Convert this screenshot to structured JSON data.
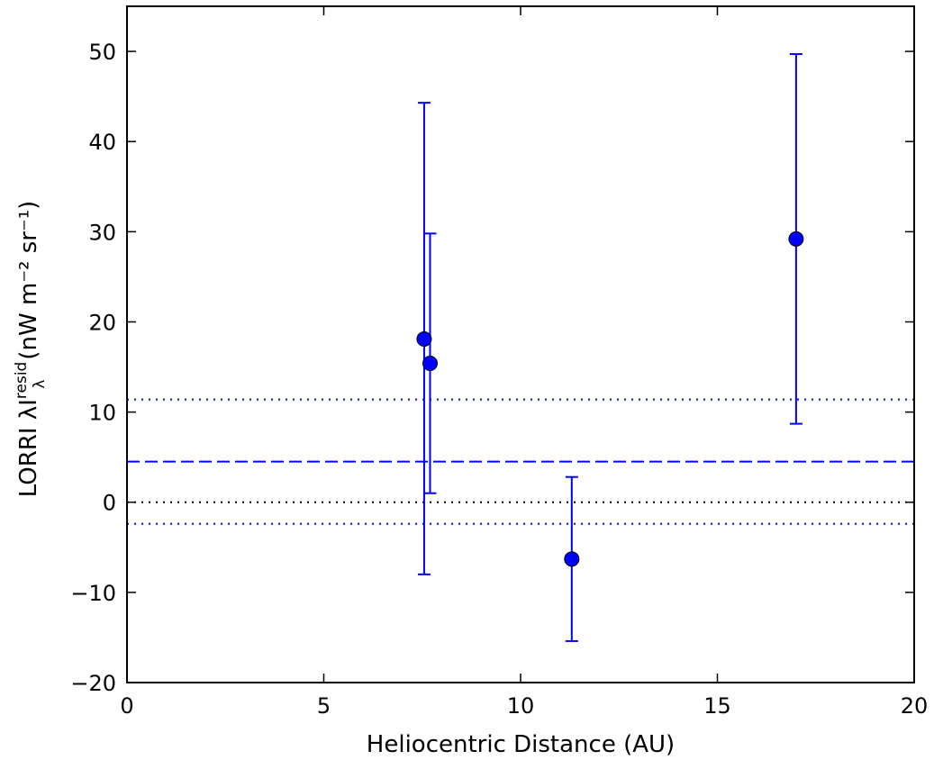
{
  "chart_data": {
    "type": "scatter",
    "xlabel": "Heliocentric Distance (AU)",
    "ylabel_prefix": "LORRI λI",
    "ylabel_sub": "λ",
    "ylabel_sup": "resid",
    "ylabel_units": "(nW m⁻² sr⁻¹)",
    "xlim": [
      0,
      20
    ],
    "ylim": [
      -20,
      55
    ],
    "x_ticks": [
      0,
      5,
      10,
      15,
      20
    ],
    "x_tick_labels": [
      "0",
      "5",
      "10",
      "15",
      "20"
    ],
    "y_ticks": [
      -20,
      -10,
      0,
      10,
      20,
      30,
      40,
      50
    ],
    "y_tick_labels": [
      "−20",
      "−10",
      "0",
      "10",
      "20",
      "30",
      "40",
      "50"
    ],
    "grid": false,
    "points": [
      {
        "x": 7.55,
        "y": 18.1,
        "y_low": -8.0,
        "y_high": 44.3
      },
      {
        "x": 7.7,
        "y": 15.4,
        "y_low": 1.0,
        "y_high": 29.8
      },
      {
        "x": 11.3,
        "y": -6.3,
        "y_low": -15.4,
        "y_high": 2.8
      },
      {
        "x": 17.0,
        "y": 29.2,
        "y_low": 8.7,
        "y_high": 49.7
      }
    ],
    "reference_lines": [
      {
        "y": 4.5,
        "style": "dashed",
        "color": "#0000ff"
      },
      {
        "y": 11.4,
        "style": "dotted",
        "color": "#0000ff"
      },
      {
        "y": -2.4,
        "style": "dotted",
        "color": "#0000ff"
      },
      {
        "y": 0,
        "style": "dotted",
        "color": "#000000"
      }
    ],
    "colors": {
      "marker": "#0000ff",
      "errorbar": "#0000ff",
      "axes": "#000000"
    }
  }
}
